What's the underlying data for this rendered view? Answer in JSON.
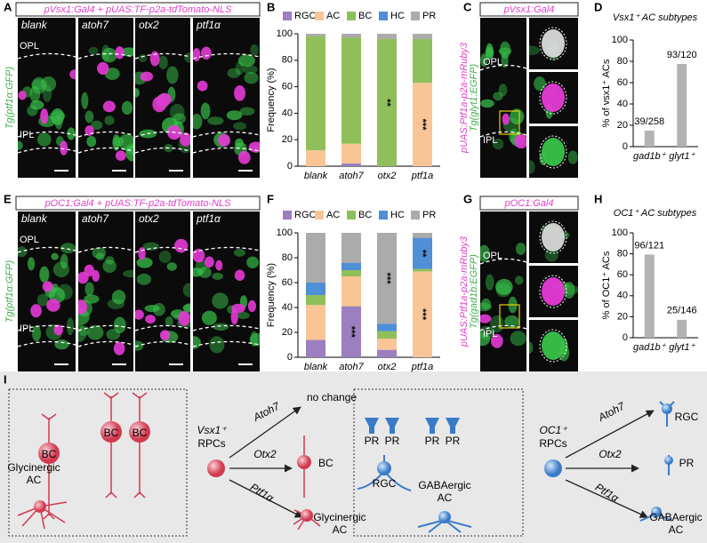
{
  "panel_labels": [
    "A",
    "B",
    "C",
    "D",
    "E",
    "F",
    "G",
    "H",
    "I"
  ],
  "panel_a": {
    "header": "pVsx1:Gal4 + pUAS:TF-p2a-tdTomato-NLS",
    "side_label": "Tg(ptf1α:GFP)",
    "conditions": [
      "blank",
      "atoh7",
      "otx2",
      "ptf1α"
    ],
    "layers": [
      "OPL",
      "IPL"
    ]
  },
  "panel_c": {
    "header": "pVsx1:Gal4",
    "side_labels": [
      "pUAS:Ptf1a-p2a-mRuby3",
      "Tg(glyt1:EGFP)"
    ],
    "layers": [
      "OPL",
      "IPL"
    ]
  },
  "panel_e": {
    "header": "pOC1:Gal4 + pUAS:TF-p2a-tdTomato-NLS",
    "side_label": "Tg(ptf1α:GFP)",
    "conditions": [
      "blank",
      "atoh7",
      "otx2",
      "ptf1α"
    ],
    "layers": [
      "OPL",
      "IPL"
    ]
  },
  "panel_g": {
    "header": "pOC1:Gal4",
    "side_labels": [
      "pUAS:Ptf1a-p2a-mRuby3",
      "Tg(gad1b:EGFP)"
    ],
    "layers": [
      "OPL",
      "IPL"
    ]
  },
  "chart_data": [
    {
      "type": "bar",
      "stacked": true,
      "categories": [
        "blank",
        "atoh7",
        "otx2",
        "ptf1a"
      ],
      "ylabel": "Frequency (%)",
      "ylim": [
        0,
        100
      ],
      "yticks": [
        0,
        20,
        40,
        60,
        80,
        100
      ],
      "series": [
        {
          "name": "RGC",
          "color": "#9b7fbf",
          "values": [
            0,
            2,
            0,
            0
          ]
        },
        {
          "name": "AC",
          "color": "#f9c596",
          "values": [
            12,
            15,
            0,
            63
          ]
        },
        {
          "name": "BC",
          "color": "#8fbf5a",
          "values": [
            86,
            80,
            96,
            33
          ]
        },
        {
          "name": "HC",
          "color": "#4f8fd6",
          "values": [
            0,
            0,
            0,
            0
          ]
        },
        {
          "name": "PR",
          "color": "#ababab",
          "values": [
            2,
            3,
            4,
            4
          ]
        }
      ],
      "annotations": [
        {
          "text": "**",
          "category": "otx2",
          "series": "BC"
        },
        {
          "text": "***",
          "category": "ptf1a",
          "series": "AC"
        }
      ]
    },
    {
      "type": "bar",
      "title": "Vsx1⁺ AC subtypes",
      "categories": [
        "gad1b⁺",
        "glyt1⁺"
      ],
      "values": [
        15.1,
        77.5
      ],
      "value_labels": [
        "39/258",
        "93/120"
      ],
      "color": "#b3b3b3",
      "ylabel": "% of vsx1⁺ ACs",
      "ylim": [
        0,
        100
      ],
      "yticks": [
        0,
        20,
        40,
        60,
        80,
        100
      ]
    },
    {
      "type": "bar",
      "stacked": true,
      "categories": [
        "blank",
        "atoh7",
        "otx2",
        "ptf1a"
      ],
      "ylabel": "Frequency (%)",
      "ylim": [
        0,
        100
      ],
      "yticks": [
        0,
        20,
        40,
        60,
        80,
        100
      ],
      "series": [
        {
          "name": "RGC",
          "color": "#9b7fbf",
          "values": [
            14,
            41,
            6,
            0
          ]
        },
        {
          "name": "AC",
          "color": "#f9c596",
          "values": [
            28,
            24,
            9,
            69
          ]
        },
        {
          "name": "BC",
          "color": "#8fbf5a",
          "values": [
            8,
            5,
            6,
            2
          ]
        },
        {
          "name": "HC",
          "color": "#4f8fd6",
          "values": [
            10,
            6,
            6,
            25
          ]
        },
        {
          "name": "PR",
          "color": "#ababab",
          "values": [
            40,
            24,
            73,
            4
          ]
        }
      ],
      "annotations": [
        {
          "text": "***",
          "category": "atoh7",
          "series": "RGC"
        },
        {
          "text": "***",
          "category": "otx2",
          "series": "PR"
        },
        {
          "text": "**",
          "category": "ptf1a",
          "series": "HC"
        },
        {
          "text": "***",
          "category": "ptf1a",
          "series": "AC"
        }
      ]
    },
    {
      "type": "bar",
      "title": "OC1⁺ AC subtypes",
      "categories": [
        "gad1b⁺",
        "glyt1⁺"
      ],
      "values": [
        79.3,
        17.1
      ],
      "value_labels": [
        "96/121",
        "25/146"
      ],
      "color": "#b3b3b3",
      "ylabel": "% of OC1⁺ ACs",
      "ylim": [
        0,
        100
      ],
      "yticks": [
        0,
        20,
        40,
        60,
        80,
        100
      ]
    }
  ],
  "panel_i": {
    "left": {
      "cells": [
        "BC",
        "BC",
        "BC"
      ],
      "ac_label": [
        "Glycinergic",
        "AC"
      ],
      "source": [
        "Vsx1⁺",
        "RPCs"
      ],
      "factors": [
        "Atoh7",
        "Otx2",
        "Ptf1α"
      ],
      "outcomes": [
        "no change",
        "BC",
        [
          "Glycinergic",
          "AC"
        ]
      ]
    },
    "right": {
      "cells": [
        "PR",
        "PR",
        "PR",
        "PR"
      ],
      "rgc_label": "RGC",
      "ac_label": [
        "GABAergic",
        "AC"
      ],
      "source": [
        "OC1⁺",
        "RPCs"
      ],
      "factors": [
        "Atoh7",
        "Otx2",
        "Ptf1α"
      ],
      "outcomes": [
        "RGC",
        "PR",
        [
          "GABAergic",
          "AC"
        ]
      ]
    }
  }
}
